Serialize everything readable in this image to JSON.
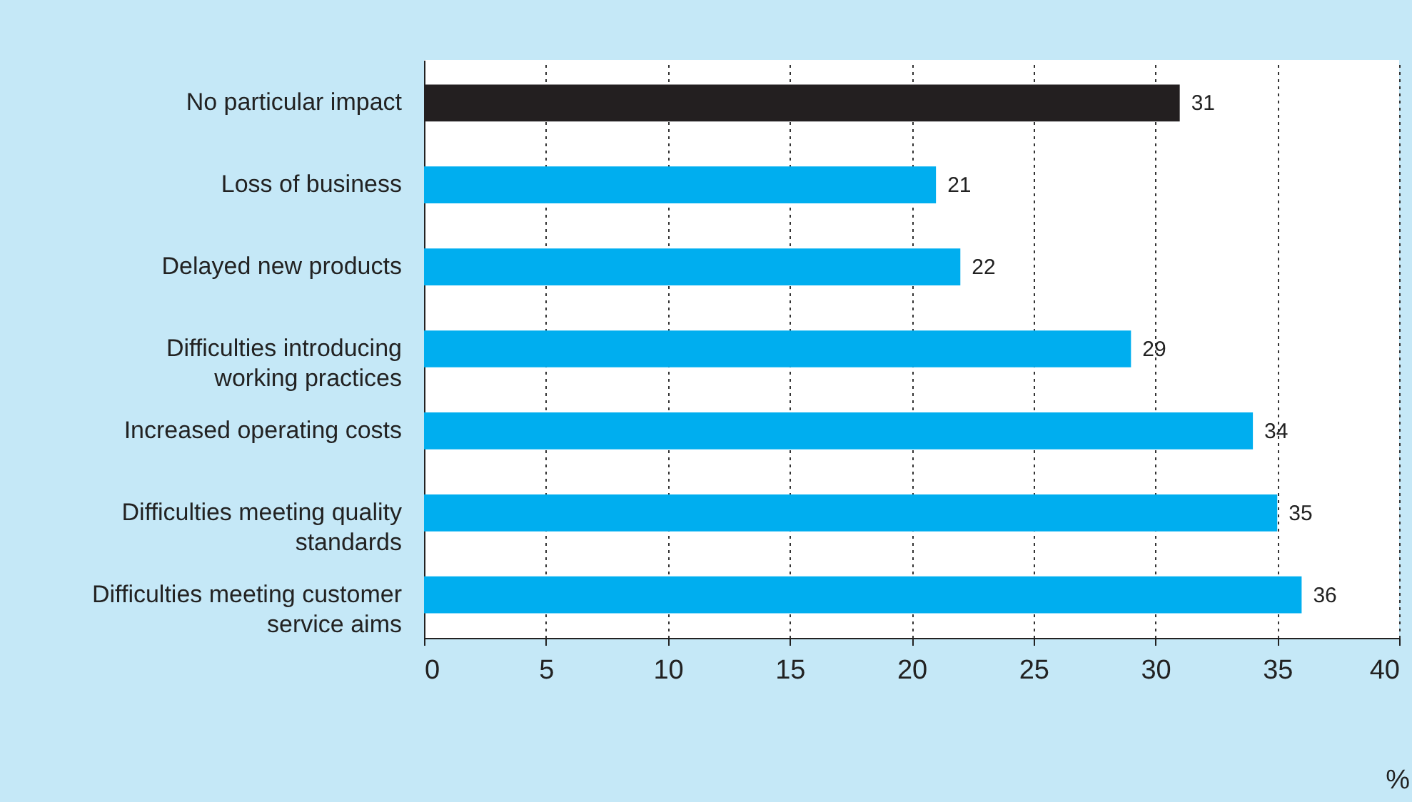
{
  "chart_data": {
    "type": "bar",
    "orientation": "horizontal",
    "xlabel": "%",
    "categories": [
      "No particular impact",
      "Loss of business",
      "Delayed new products",
      "Difficulties introducing working practices",
      "Increased operating costs",
      "Difficulties meeting quality standards",
      "Difficulties meeting customer service aims"
    ],
    "values": [
      31,
      21,
      22,
      29,
      34,
      35,
      36
    ],
    "colors": [
      "#231f20",
      "#00aeef",
      "#00aeef",
      "#00aeef",
      "#00aeef",
      "#00aeef",
      "#00aeef"
    ],
    "xlim": [
      0,
      40
    ],
    "xticks": [
      0,
      5,
      10,
      15,
      20,
      25,
      30,
      35,
      40
    ],
    "grid": "x",
    "data_labels": true
  }
}
